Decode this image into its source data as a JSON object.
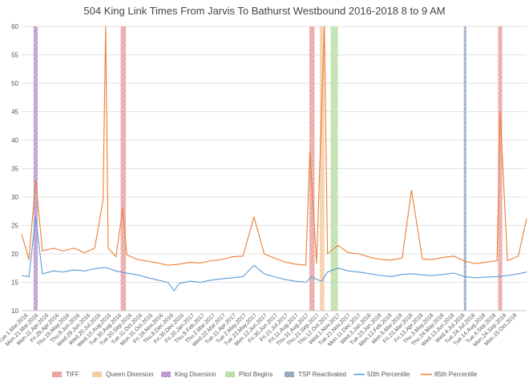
{
  "chart_data": {
    "type": "line",
    "title": "504 King Link Times From Jarvis To Bathurst Westbound 2016-2018 8 to 9 AM",
    "xlabel": "",
    "ylabel": "",
    "ylim": [
      10,
      60
    ],
    "yticks": [
      10,
      15,
      20,
      25,
      30,
      35,
      40,
      45,
      50,
      55,
      60
    ],
    "grid": "horizontal",
    "legend_position": "bottom",
    "x_range": [
      "2016-03-01",
      "2018-10-31"
    ],
    "x_ticks": [
      "Tue.1.Mar.2016",
      "Mon.21.Mar.2016",
      "Mon.11.Apr.2016",
      "Fri.29.Apr.2016",
      "Thu.19.May.2016",
      "Thu.9.Jun.2016",
      "Wed.29.Jun.2016",
      "Wed.20.Jul.2016",
      "Wed.10.Aug.2016",
      "Tue.30.Aug.2016",
      "Tue.20.Sep.2016",
      "Tue.11.Oct.2016",
      "Mon.31.Oct.2016",
      "Fri.18.Nov.2016",
      "Thu.8.Dec.2016",
      "Fri.30.Dec.2016",
      "Fri.20.Jan.2017",
      "Thu.9.Feb.2017",
      "Thu.2.Mar.2017",
      "Wed.22.Mar.2017",
      "Tue.11.Apr.2017",
      "Tue.2.May.2017",
      "Tue.23.May.2017",
      "Mon.12.Jun.2017",
      "Fri.30.Jun.2017",
      "Fri.21.Jul.2017",
      "Fri.11.Aug.2017",
      "Thu.31.Aug.2017",
      "Thu.21.Sep.2017",
      "Thu.12.Oct.2017",
      "Wed.1.Nov.2017",
      "Tue.21.Nov.2017",
      "Mon.11.Dec.2017",
      "Wed.3.Jan.2018",
      "Tue.23.Jan.2018",
      "Mon.12.Feb.2018",
      "Mon.5.Mar.2018",
      "Fri.23.Mar.2018",
      "Fri.13.Apr.2018",
      "Thu.3.May.2018",
      "Thu.24.May.2018",
      "Wed.13.Jun.2018",
      "Wed.4.Jul.2018",
      "Tue.24.Jul.2018",
      "Tue.14.Aug.2018",
      "Tue.4.Sep.2018",
      "Mon.24.Sep.2018",
      "Mon.15.Oct.2018"
    ],
    "events": [
      {
        "name": "King Diversion",
        "start": "2016-03-24",
        "end": "2016-04-01",
        "color": "#b48fc8"
      },
      {
        "name": "TIFF",
        "start": "2016-09-08",
        "end": "2016-09-18",
        "color": "#e89a9a"
      },
      {
        "name": "TIFF",
        "start": "2017-09-07",
        "end": "2017-09-17",
        "color": "#e89a9a"
      },
      {
        "name": "Queen Diversion",
        "start": "2017-09-27",
        "end": "2017-10-06",
        "color": "#f4c89c"
      },
      {
        "name": "Pilot Begins",
        "start": "2017-10-18",
        "end": "2017-11-01",
        "color": "#b6dca0"
      },
      {
        "name": "TSP Reactivated",
        "start": "2018-07-02",
        "end": "2018-07-05",
        "color": "#8ca0b8"
      },
      {
        "name": "TIFF",
        "start": "2018-09-06",
        "end": "2018-09-14",
        "color": "#e89a9a"
      }
    ],
    "series": [
      {
        "name": "50th Percentile",
        "color": "#5b9bd5",
        "x": [
          "2016-03-01",
          "2016-03-15",
          "2016-03-28",
          "2016-04-10",
          "2016-05-01",
          "2016-05-20",
          "2016-06-10",
          "2016-06-30",
          "2016-07-20",
          "2016-08-10",
          "2016-08-30",
          "2016-09-20",
          "2016-10-11",
          "2016-10-31",
          "2016-11-18",
          "2016-12-08",
          "2016-12-20",
          "2016-12-30",
          "2017-01-20",
          "2017-02-09",
          "2017-03-02",
          "2017-03-22",
          "2017-04-11",
          "2017-05-02",
          "2017-05-23",
          "2017-06-12",
          "2017-06-30",
          "2017-07-21",
          "2017-08-11",
          "2017-08-31",
          "2017-09-12",
          "2017-09-21",
          "2017-10-01",
          "2017-10-12",
          "2017-11-01",
          "2017-11-21",
          "2017-12-11",
          "2018-01-03",
          "2018-01-23",
          "2018-02-12",
          "2018-03-05",
          "2018-03-23",
          "2018-04-13",
          "2018-05-03",
          "2018-05-24",
          "2018-06-13",
          "2018-07-04",
          "2018-07-24",
          "2018-08-14",
          "2018-09-04",
          "2018-09-24",
          "2018-10-15",
          "2018-10-31"
        ],
        "values": [
          16.2,
          16.0,
          26.5,
          16.5,
          17.0,
          16.8,
          17.2,
          17.0,
          17.4,
          17.6,
          17.0,
          16.6,
          16.3,
          15.8,
          15.4,
          15.0,
          13.5,
          14.8,
          15.2,
          15.0,
          15.4,
          15.6,
          15.8,
          16.0,
          18.0,
          16.5,
          16.0,
          15.5,
          15.2,
          15.0,
          16.0,
          15.5,
          15.2,
          16.8,
          17.5,
          17.0,
          16.8,
          16.5,
          16.2,
          16.0,
          16.4,
          16.5,
          16.3,
          16.2,
          16.4,
          16.6,
          16.0,
          15.8,
          15.9,
          16.0,
          16.2,
          16.5,
          16.8
        ]
      },
      {
        "name": "85th Percentile",
        "color": "#ed7d31",
        "x": [
          "2016-03-01",
          "2016-03-15",
          "2016-03-28",
          "2016-04-10",
          "2016-05-01",
          "2016-05-20",
          "2016-06-10",
          "2016-06-30",
          "2016-07-20",
          "2016-08-05",
          "2016-08-10",
          "2016-08-15",
          "2016-08-30",
          "2016-09-12",
          "2016-09-20",
          "2016-10-11",
          "2016-10-31",
          "2016-11-18",
          "2016-12-08",
          "2016-12-30",
          "2017-01-20",
          "2017-02-09",
          "2017-03-02",
          "2017-03-22",
          "2017-04-11",
          "2017-05-02",
          "2017-05-23",
          "2017-06-12",
          "2017-06-30",
          "2017-07-21",
          "2017-08-11",
          "2017-08-31",
          "2017-09-08",
          "2017-09-21",
          "2017-10-06",
          "2017-10-12",
          "2017-11-01",
          "2017-11-21",
          "2017-12-11",
          "2018-01-03",
          "2018-01-23",
          "2018-02-12",
          "2018-03-05",
          "2018-03-23",
          "2018-04-13",
          "2018-05-03",
          "2018-05-24",
          "2018-06-13",
          "2018-07-04",
          "2018-07-24",
          "2018-08-14",
          "2018-09-04",
          "2018-09-10",
          "2018-09-24",
          "2018-10-15",
          "2018-10-31"
        ],
        "values": [
          23.5,
          19.0,
          33.0,
          20.5,
          21.0,
          20.5,
          21.0,
          20.2,
          21.0,
          29.5,
          60.0,
          21.0,
          19.5,
          28.0,
          19.8,
          19.0,
          18.7,
          18.4,
          18.0,
          18.2,
          18.5,
          18.4,
          18.8,
          19.0,
          19.5,
          19.6,
          26.5,
          20.0,
          19.3,
          18.6,
          18.2,
          18.0,
          38.0,
          18.3,
          60.0,
          20.0,
          21.5,
          20.2,
          20.0,
          19.4,
          19.0,
          18.9,
          19.3,
          31.2,
          19.1,
          19.0,
          19.4,
          19.6,
          18.7,
          18.3,
          18.5,
          18.8,
          45.0,
          18.8,
          19.6,
          26.2
        ]
      }
    ]
  },
  "legend": {
    "items": [
      {
        "label": "TIFF",
        "kind": "band",
        "color": "#e89a9a"
      },
      {
        "label": "Queen Diversion",
        "kind": "band",
        "color": "#f4c89c"
      },
      {
        "label": "King Diversion",
        "kind": "band",
        "color": "#b48fc8"
      },
      {
        "label": "Pilot Begins",
        "kind": "band",
        "color": "#b6dca0"
      },
      {
        "label": "TSP Reactivated",
        "kind": "band",
        "color": "#8ca0b8"
      },
      {
        "label": "50th Percentile",
        "kind": "line",
        "color": "#5b9bd5"
      },
      {
        "label": "85th Percentile",
        "kind": "line",
        "color": "#ed7d31"
      }
    ]
  }
}
